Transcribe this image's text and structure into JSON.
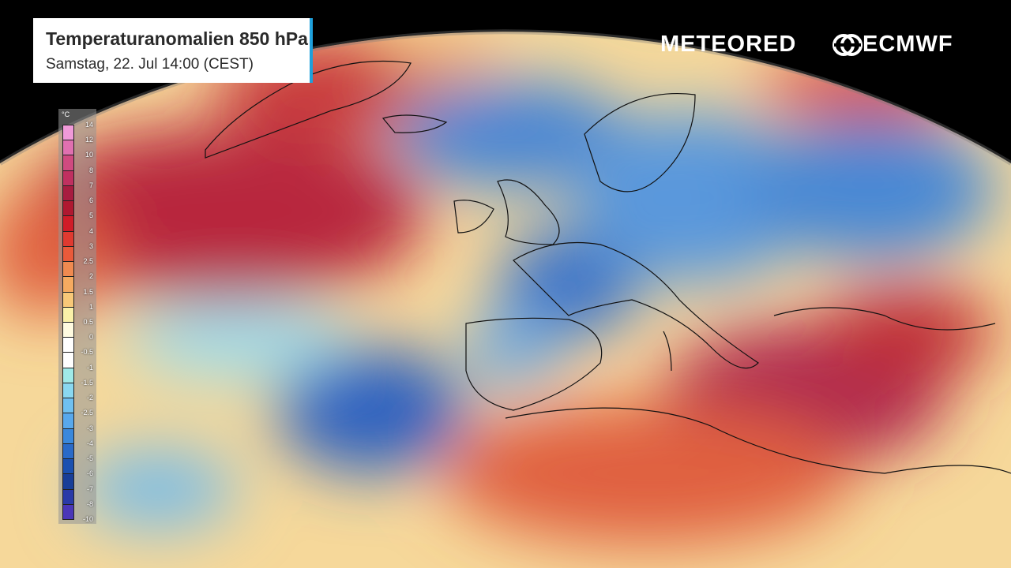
{
  "header": {
    "title": "Temperaturanomalien 850 hPa",
    "subtitle": "Samstag, 22. Jul 14:00 (CEST)",
    "accent": "#1ea0dc"
  },
  "brands": {
    "left": "METEORED",
    "right": "ECMWF"
  },
  "legend": {
    "unit": "°C",
    "labels": [
      "14",
      "12",
      "10",
      "8",
      "7",
      "6",
      "5",
      "4",
      "3",
      "2.5",
      "2",
      "1.5",
      "1",
      "0.5",
      "0",
      "-0.5",
      "-1",
      "-1.5",
      "-2",
      "-2.5",
      "-3",
      "-4",
      "-5",
      "-6",
      "-7",
      "-8",
      "-10"
    ],
    "colors": [
      "#f09ad8",
      "#e070b0",
      "#d04a80",
      "#c03060",
      "#a81c40",
      "#b01830",
      "#d01c28",
      "#e03a30",
      "#ea5a3a",
      "#f08a50",
      "#f5aa60",
      "#f8c878",
      "#faf0a8",
      "#fffbe0",
      "#ffffff",
      "#ffffff",
      "#a0eae8",
      "#8ad8f0",
      "#70c0f0",
      "#58a8ec",
      "#3a88dc",
      "#2a6ac8",
      "#1a50b0",
      "#183e98",
      "#2a3aa8",
      "#4a36b8",
      "#6a3ac8"
    ]
  },
  "map": {
    "field": "Temperaturanomalien 850 hPa",
    "land_outline": "#111111"
  }
}
